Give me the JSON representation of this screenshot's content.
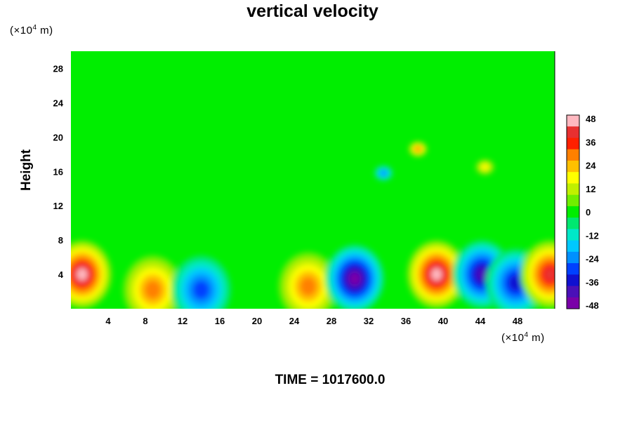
{
  "chart_data": {
    "type": "heatmap",
    "title": "vertical velocity",
    "ylabel": "Height",
    "y_unit": {
      "prefix": "(×10",
      "exp": "4",
      "suffix": " m)"
    },
    "x_unit": {
      "prefix": "(×10",
      "exp": "4",
      "suffix": " m)"
    },
    "xlim": [
      0,
      52
    ],
    "ylim": [
      0,
      30
    ],
    "xticks": [
      4,
      8,
      12,
      16,
      20,
      24,
      28,
      32,
      36,
      40,
      44,
      48
    ],
    "yticks": [
      4,
      8,
      12,
      16,
      20,
      24,
      28
    ],
    "colorbar": {
      "ticks": [
        48,
        36,
        24,
        12,
        0,
        -12,
        -24,
        -36,
        -48
      ],
      "range": [
        -48,
        48
      ]
    },
    "features": [
      {
        "x": 1.2,
        "y": 4.0,
        "value": 48
      },
      {
        "x": 8.8,
        "y": 2.2,
        "value": 34
      },
      {
        "x": 14.0,
        "y": 2.2,
        "value": -30
      },
      {
        "x": 25.5,
        "y": 2.6,
        "value": 34
      },
      {
        "x": 30.5,
        "y": 3.5,
        "value": -48
      },
      {
        "x": 39.3,
        "y": 4.0,
        "value": 48
      },
      {
        "x": 44.2,
        "y": 4.0,
        "value": -42
      },
      {
        "x": 47.8,
        "y": 3.0,
        "value": -40
      },
      {
        "x": 51.5,
        "y": 4.0,
        "value": 44
      },
      {
        "x": 37.3,
        "y": 18.6,
        "value": 32
      },
      {
        "x": 33.6,
        "y": 15.8,
        "value": -26
      },
      {
        "x": 44.5,
        "y": 16.5,
        "value": 22
      }
    ],
    "grid": false,
    "legend": "right"
  },
  "footer": {
    "label": "TIME = 1017600.0"
  }
}
